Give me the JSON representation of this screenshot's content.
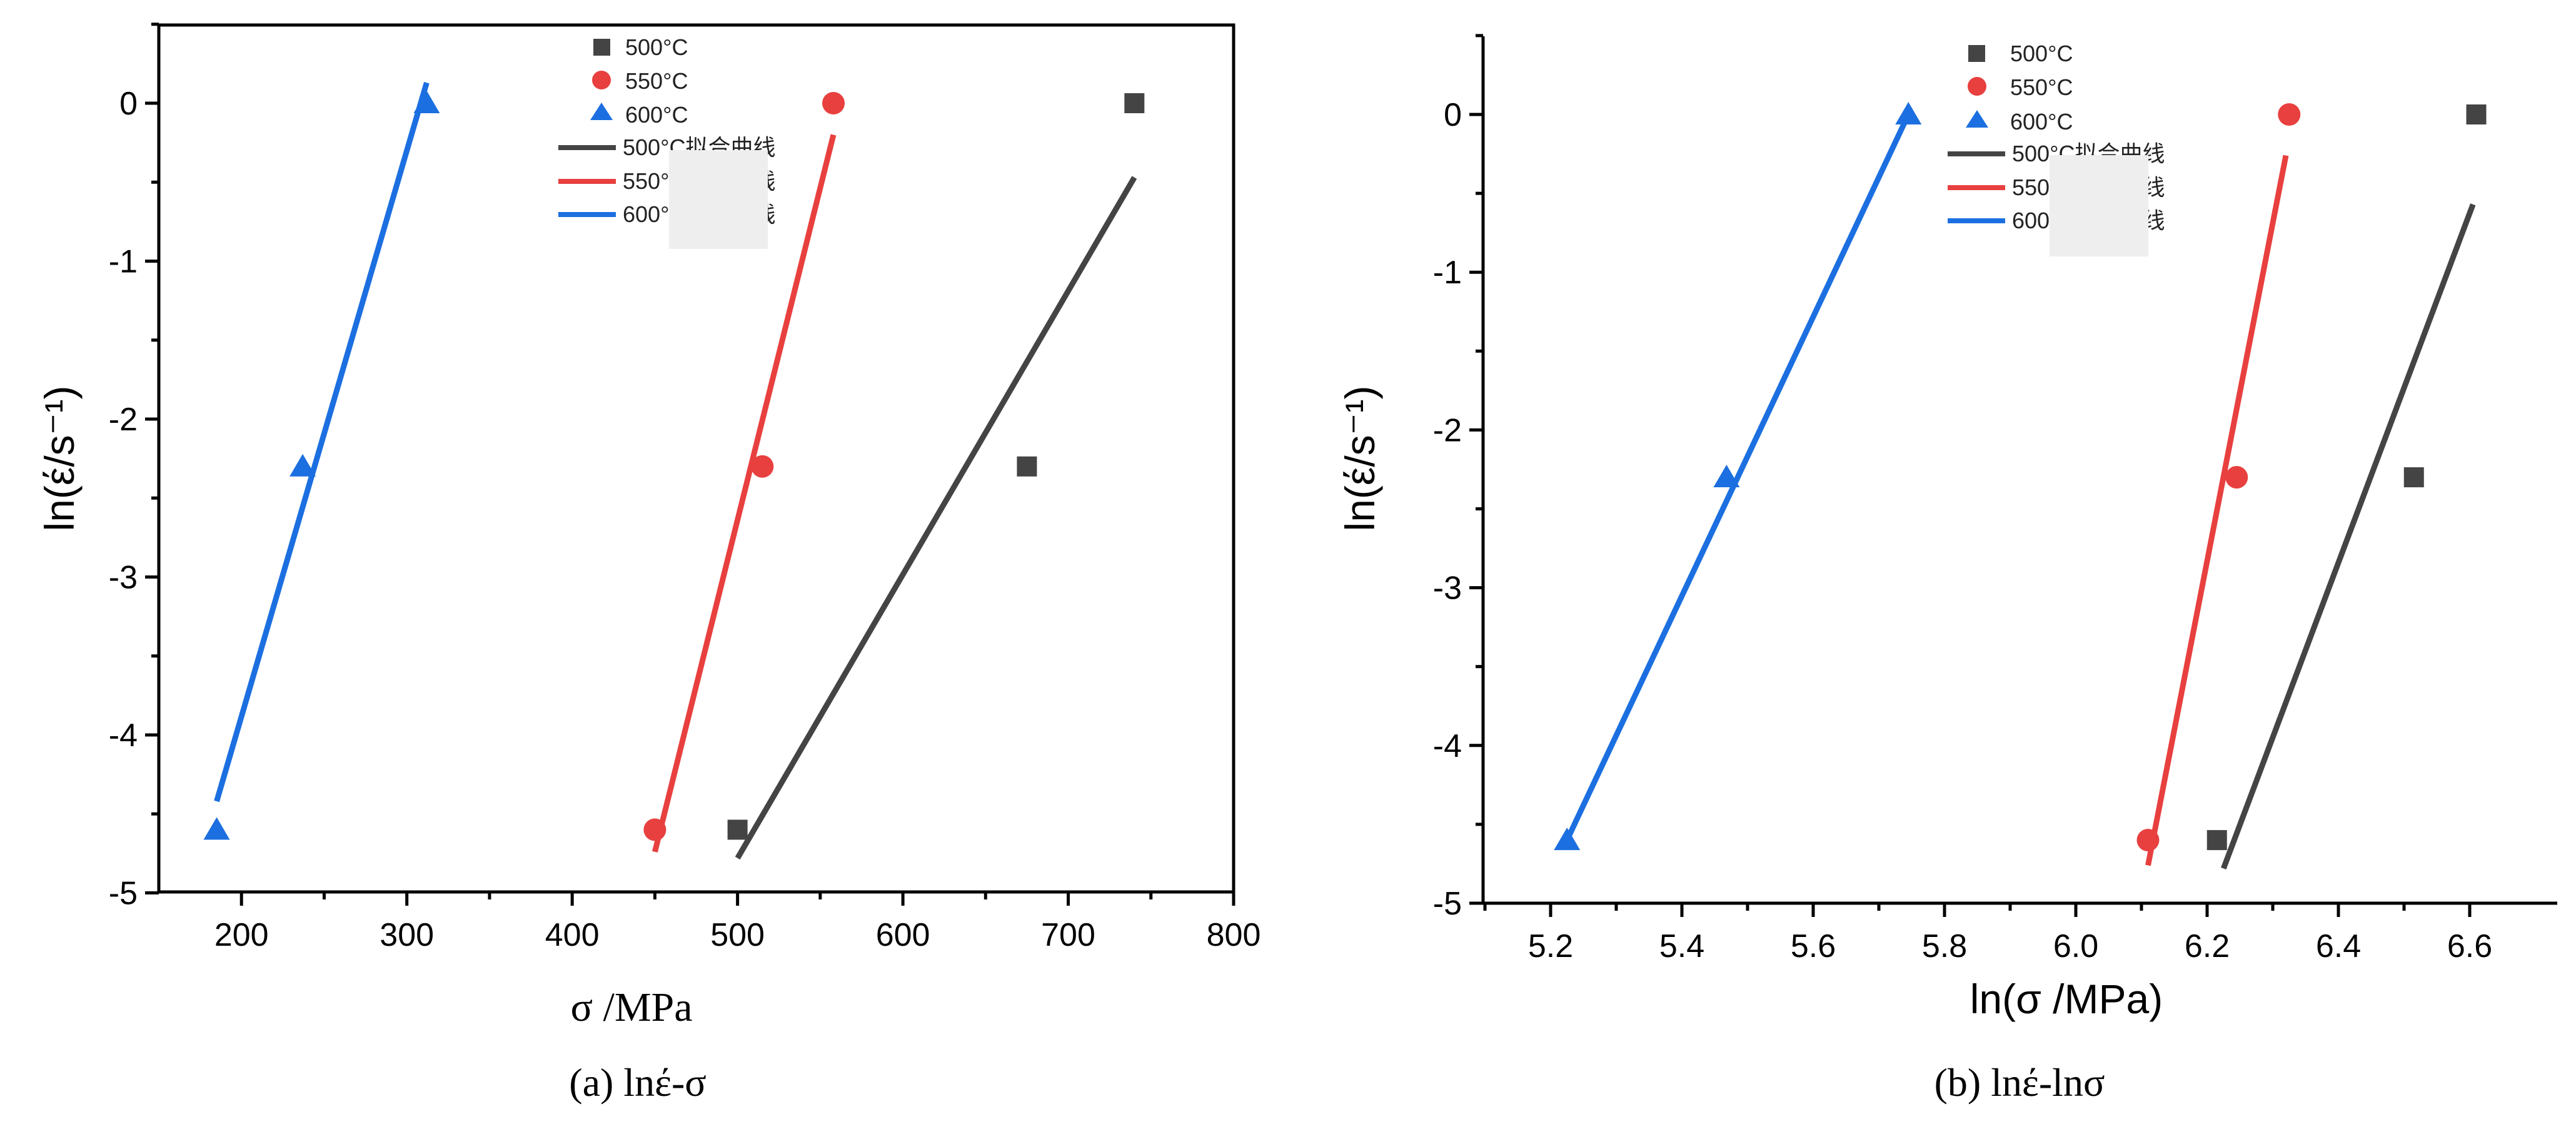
{
  "chart_data": [
    {
      "type": "scatter",
      "panel": "a",
      "caption": "(a) lnέ-σ",
      "xlabel": "σ /MPa",
      "ylabel": "ln(έ/s⁻¹)",
      "xlim": [
        150,
        800
      ],
      "ylim": [
        -5,
        0.5
      ],
      "xticks": [
        200,
        300,
        400,
        500,
        600,
        700,
        800
      ],
      "yticks": [
        0,
        -1,
        -2,
        -3,
        -4,
        -5
      ],
      "legend": [
        "500°C",
        "550°C",
        "600°C",
        "500°C拟合曲线",
        "550°C拟合曲线",
        "600°C拟合曲线"
      ],
      "series": [
        {
          "name": "500°C",
          "marker": "square",
          "color": "#444444",
          "points": [
            [
              500,
              -4.6
            ],
            [
              675,
              -2.3
            ],
            [
              740,
              0
            ]
          ],
          "fit": [
            [
              500,
              -4.78
            ],
            [
              740,
              -0.47
            ]
          ]
        },
        {
          "name": "550°C",
          "marker": "circle",
          "color": "#e8403f",
          "points": [
            [
              450,
              -4.6
            ],
            [
              515,
              -2.3
            ],
            [
              558,
              0
            ]
          ],
          "fit": [
            [
              450,
              -4.74
            ],
            [
              558,
              -0.2
            ]
          ]
        },
        {
          "name": "600°C",
          "marker": "triangle",
          "color": "#1c6fe0",
          "points": [
            [
              185,
              -4.6
            ],
            [
              237,
              -2.3
            ],
            [
              312,
              0
            ]
          ],
          "fit": [
            [
              185,
              -4.42
            ],
            [
              312,
              0.13
            ]
          ]
        }
      ]
    },
    {
      "type": "scatter",
      "panel": "b",
      "caption": "(b) lnέ-lnσ",
      "xlabel": "ln(σ /MPa)",
      "ylabel": "ln(έ/s⁻¹)",
      "xlim": [
        5.1,
        6.7
      ],
      "ylim": [
        -5,
        0.5
      ],
      "xticks": [
        "5.2",
        "5.4",
        "5.6",
        "5.8",
        "6.0",
        "6.2",
        "6.4",
        "6.6"
      ],
      "yticks": [
        0,
        -1,
        -2,
        -3,
        -4,
        -5
      ],
      "legend": [
        "500°C",
        "550°C",
        "600°C",
        "500°C拟合曲线",
        "550°C拟合曲线",
        "600°C拟合曲线"
      ],
      "series": [
        {
          "name": "500°C",
          "marker": "square",
          "color": "#444444",
          "points": [
            [
              6.215,
              -4.6
            ],
            [
              6.515,
              -2.3
            ],
            [
              6.61,
              0
            ]
          ],
          "fit": [
            [
              6.225,
              -4.78
            ],
            [
              6.605,
              -0.57
            ]
          ]
        },
        {
          "name": "550°C",
          "marker": "circle",
          "color": "#e8403f",
          "points": [
            [
              6.11,
              -4.6
            ],
            [
              6.245,
              -2.3
            ],
            [
              6.325,
              0
            ]
          ],
          "fit": [
            [
              6.11,
              -4.76
            ],
            [
              6.32,
              -0.26
            ]
          ]
        },
        {
          "name": "600°C",
          "marker": "triangle",
          "color": "#1c6fe0",
          "points": [
            [
              5.225,
              -4.6
            ],
            [
              5.468,
              -2.3
            ],
            [
              5.745,
              0
            ]
          ],
          "fit": [
            [
              5.225,
              -4.6
            ],
            [
              5.745,
              0
            ]
          ]
        }
      ]
    }
  ]
}
